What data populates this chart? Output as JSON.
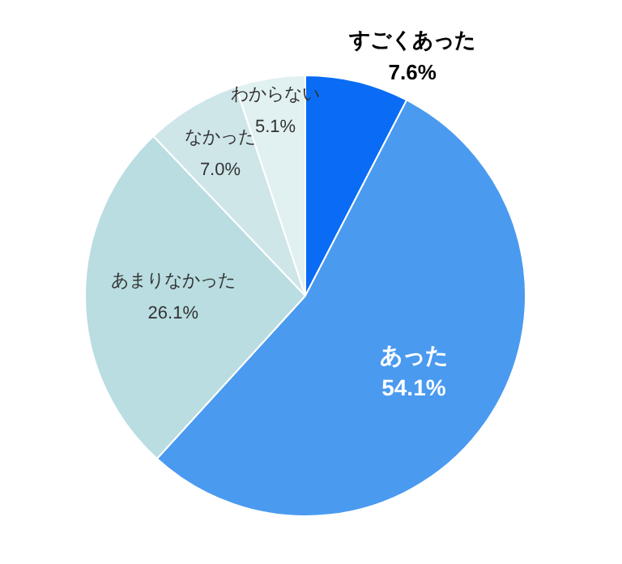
{
  "chart_data": {
    "type": "pie",
    "categories": [
      "すごくあった",
      "あった",
      "あまりなかった",
      "なかった",
      "わからない"
    ],
    "values": [
      7.6,
      54.1,
      26.1,
      7.0,
      5.1
    ],
    "colors": [
      "#0a6cf5",
      "#4a9af0",
      "#b9dde0",
      "#cfe6e9",
      "#e1f0f1"
    ],
    "value_labels": [
      "7.6%",
      "54.1%",
      "26.1%",
      "7.0%",
      "5.1%"
    ]
  }
}
